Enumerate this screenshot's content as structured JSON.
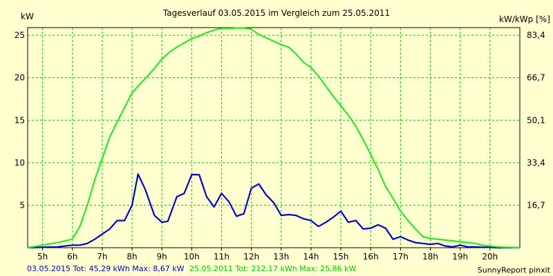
{
  "chart_data": {
    "type": "line",
    "title": "Tagesverlauf 03.05.2015 im Vergleich zum 25.05.2011",
    "ylabel_left": "kW",
    "ylabel_right": "kW/kWp [%]",
    "xlim": [
      4.5,
      21.0
    ],
    "ylim": [
      0,
      25.9
    ],
    "y_ticks": [
      "5",
      "10",
      "15",
      "20",
      "25"
    ],
    "y_tick_values": [
      5,
      10,
      15,
      20,
      25
    ],
    "y2_ticks": [
      "16,7",
      "33,4",
      "50,1",
      "66,7",
      "83,4"
    ],
    "y2_tick_values": [
      5,
      10,
      15,
      20,
      25
    ],
    "x_ticks": [
      "5h",
      "6h",
      "7h",
      "8h",
      "9h",
      "10h",
      "11h",
      "12h",
      "13h",
      "14h",
      "15h",
      "16h",
      "17h",
      "18h",
      "19h",
      "20h"
    ],
    "x_tick_values": [
      5,
      6,
      7,
      8,
      9,
      10,
      11,
      12,
      13,
      14,
      15,
      16,
      17,
      18,
      19,
      20
    ],
    "grid": true,
    "background": "#ffffd0",
    "grid_color": "#00c800",
    "series": [
      {
        "color": "#0000c8",
        "x": [
          4.5,
          5.0,
          5.5,
          6.0,
          6.25,
          6.5,
          6.75,
          7.0,
          7.25,
          7.5,
          7.75,
          8.0,
          8.2,
          8.45,
          8.75,
          9.0,
          9.2,
          9.5,
          9.75,
          10.0,
          10.25,
          10.5,
          10.75,
          11.0,
          11.25,
          11.5,
          11.75,
          12.0,
          12.25,
          12.5,
          12.75,
          13.0,
          13.25,
          13.5,
          13.75,
          14.0,
          14.25,
          14.5,
          14.75,
          15.0,
          15.25,
          15.5,
          15.75,
          16.0,
          16.25,
          16.5,
          16.75,
          17.0,
          17.25,
          17.5,
          17.75,
          18.0,
          18.25,
          18.5,
          18.75,
          19.0,
          19.25,
          19.5,
          19.75,
          20.0,
          20.25,
          20.5,
          21.0
        ],
        "y": [
          0,
          0.05,
          0.1,
          0.3,
          0.3,
          0.5,
          1.0,
          1.6,
          2.2,
          3.2,
          3.2,
          5.0,
          8.67,
          6.8,
          3.8,
          3.0,
          3.1,
          6.0,
          6.4,
          8.6,
          8.6,
          6.0,
          4.8,
          6.4,
          5.4,
          3.7,
          4.0,
          7.0,
          7.5,
          6.2,
          5.3,
          3.8,
          3.9,
          3.8,
          3.4,
          3.2,
          2.5,
          3.0,
          3.6,
          4.3,
          3.0,
          3.2,
          2.2,
          2.3,
          2.7,
          2.3,
          1.0,
          1.3,
          0.9,
          0.6,
          0.5,
          0.4,
          0.5,
          0.2,
          0.1,
          0.3,
          0.1,
          0.1,
          0.05,
          0.05,
          0,
          0,
          0
        ]
      },
      {
        "color": "#28e628",
        "x": [
          4.5,
          5.0,
          5.5,
          6.0,
          6.25,
          6.5,
          6.75,
          7.0,
          7.25,
          7.5,
          7.75,
          8.0,
          8.25,
          8.5,
          8.75,
          9.0,
          9.25,
          9.5,
          9.75,
          10.0,
          10.25,
          10.5,
          10.75,
          11.0,
          11.25,
          11.5,
          11.75,
          12.0,
          12.25,
          12.5,
          12.75,
          13.0,
          13.25,
          13.5,
          13.75,
          14.0,
          14.25,
          14.5,
          14.75,
          15.0,
          15.25,
          15.5,
          15.75,
          16.0,
          16.25,
          16.5,
          16.75,
          17.0,
          17.25,
          17.5,
          17.75,
          18.0,
          18.25,
          18.5,
          18.75,
          19.0,
          19.25,
          19.5,
          19.75,
          20.0,
          20.25,
          20.5,
          21.0
        ],
        "y": [
          0,
          0.3,
          0.6,
          1.0,
          2.5,
          5.0,
          8.0,
          10.5,
          13.0,
          14.8,
          16.5,
          18.2,
          19.2,
          20.1,
          21.1,
          22.2,
          23.0,
          23.6,
          24.1,
          24.6,
          24.9,
          25.3,
          25.6,
          25.8,
          25.8,
          25.85,
          25.86,
          25.7,
          25.1,
          24.7,
          24.3,
          23.9,
          23.6,
          22.8,
          21.8,
          21.2,
          20.2,
          19.0,
          17.8,
          16.7,
          15.6,
          14.3,
          12.7,
          11.0,
          9.2,
          7.2,
          5.8,
          4.3,
          3.2,
          2.2,
          1.3,
          1.1,
          1.0,
          0.9,
          0.8,
          0.7,
          0.6,
          0.5,
          0.3,
          0.2,
          0.1,
          0.05,
          0
        ]
      }
    ]
  },
  "footer": {
    "blue_text": "03.05.2015 Tot: 45,29 kWh Max: 8,67 kW",
    "green_text": "25.05.2011 Tot: 212,17 kWh Max: 25,86 kW",
    "credit": "SunnyReport pinxit"
  }
}
